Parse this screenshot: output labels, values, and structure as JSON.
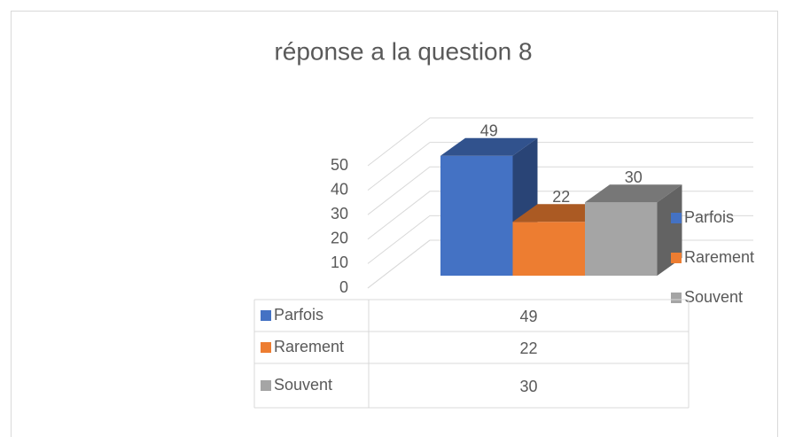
{
  "chart_data": {
    "type": "bar",
    "title": "réponse a la question 8",
    "series": [
      {
        "name": "Parfois",
        "color": "#4472c4",
        "values": [
          49
        ]
      },
      {
        "name": "Rarement",
        "color": "#ed7d31",
        "values": [
          22
        ]
      },
      {
        "name": "Souvent",
        "color": "#a5a5a5",
        "values": [
          30
        ]
      }
    ],
    "ylim": [
      0,
      50
    ],
    "yticks": [
      0,
      10,
      20,
      30,
      40,
      50
    ],
    "grid": true,
    "legend": "right",
    "data_table": true
  }
}
